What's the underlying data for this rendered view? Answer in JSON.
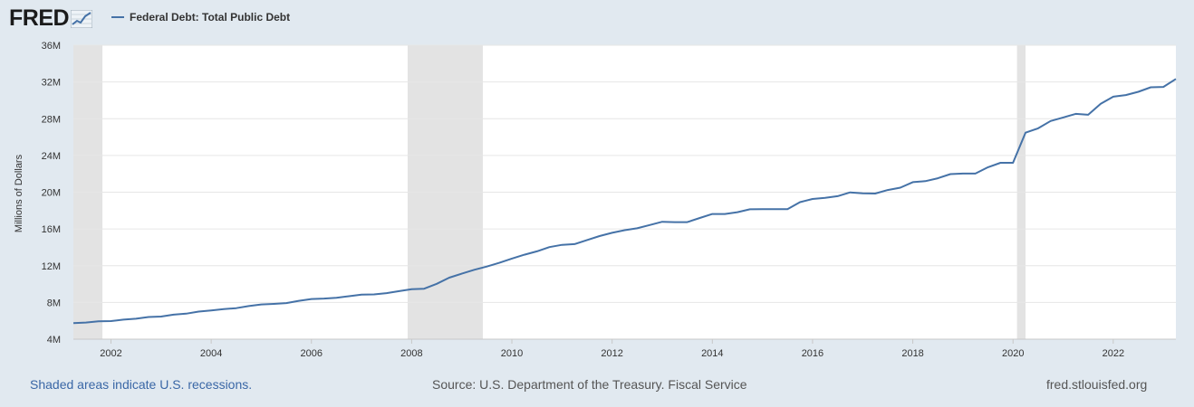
{
  "brand": {
    "logo_text": "FRED",
    "logo_icon": "trend-graph-icon"
  },
  "legend": {
    "series_label": "Federal Debt: Total Public Debt",
    "color": "#4572a7"
  },
  "footer": {
    "recession_note": "Shaded areas indicate U.S. recessions.",
    "source": "Source: U.S. Department of the Treasury. Fiscal Service",
    "site": "fred.stlouisfed.org"
  },
  "chart_data": {
    "type": "line",
    "title": "",
    "xlabel": "",
    "ylabel": "Millions of Dollars",
    "xlim": [
      2001.25,
      2023.25
    ],
    "ylim": [
      4,
      36
    ],
    "y_unit_suffix": "M",
    "yticks": [
      4,
      8,
      12,
      16,
      20,
      24,
      28,
      32,
      36
    ],
    "xticks": [
      2002,
      2004,
      2006,
      2008,
      2010,
      2012,
      2014,
      2016,
      2018,
      2020,
      2022
    ],
    "grid": "horizontal",
    "legend_position": "top-left",
    "recessions": [
      [
        2001.25,
        2001.83
      ],
      [
        2007.92,
        2009.42
      ],
      [
        2020.08,
        2020.25
      ]
    ],
    "series": [
      {
        "name": "Federal Debt: Total Public Debt",
        "color": "#4572a7",
        "x": [
          2001.25,
          2001.5,
          2001.75,
          2002.0,
          2002.25,
          2002.5,
          2002.75,
          2003.0,
          2003.25,
          2003.5,
          2003.75,
          2004.0,
          2004.25,
          2004.5,
          2004.75,
          2005.0,
          2005.25,
          2005.5,
          2005.75,
          2006.0,
          2006.25,
          2006.5,
          2006.75,
          2007.0,
          2007.25,
          2007.5,
          2007.75,
          2008.0,
          2008.25,
          2008.5,
          2008.75,
          2009.0,
          2009.25,
          2009.5,
          2009.75,
          2010.0,
          2010.25,
          2010.5,
          2010.75,
          2011.0,
          2011.25,
          2011.5,
          2011.75,
          2012.0,
          2012.25,
          2012.5,
          2012.75,
          2013.0,
          2013.25,
          2013.5,
          2013.75,
          2014.0,
          2014.25,
          2014.5,
          2014.75,
          2015.0,
          2015.25,
          2015.5,
          2015.75,
          2016.0,
          2016.25,
          2016.5,
          2016.75,
          2017.0,
          2017.25,
          2017.5,
          2017.75,
          2018.0,
          2018.25,
          2018.5,
          2018.75,
          2019.0,
          2019.25,
          2019.5,
          2019.75,
          2020.0,
          2020.25,
          2020.5,
          2020.75,
          2021.0,
          2021.25,
          2021.5,
          2021.75,
          2022.0,
          2022.25,
          2022.5,
          2022.75,
          2023.0,
          2023.25
        ],
        "values": [
          5.74,
          5.81,
          5.94,
          5.97,
          6.13,
          6.23,
          6.41,
          6.46,
          6.67,
          6.78,
          7.0,
          7.13,
          7.27,
          7.38,
          7.6,
          7.78,
          7.84,
          7.93,
          8.17,
          8.37,
          8.42,
          8.51,
          8.68,
          8.85,
          8.87,
          9.01,
          9.23,
          9.44,
          9.49,
          10.03,
          10.7,
          11.13,
          11.55,
          11.91,
          12.31,
          12.77,
          13.2,
          13.56,
          14.02,
          14.27,
          14.35,
          14.79,
          15.22,
          15.58,
          15.86,
          16.07,
          16.43,
          16.78,
          16.74,
          16.74,
          17.19,
          17.63,
          17.63,
          17.82,
          18.14,
          18.15,
          18.15,
          18.15,
          18.92,
          19.26,
          19.38,
          19.57,
          19.98,
          19.88,
          19.85,
          20.24,
          20.49,
          21.09,
          21.2,
          21.52,
          21.97,
          22.03,
          22.03,
          22.72,
          23.2,
          23.2,
          26.48,
          26.95,
          27.75,
          28.13,
          28.53,
          28.43,
          29.62,
          30.4,
          30.57,
          30.93,
          31.42,
          31.46,
          32.33
        ]
      }
    ]
  }
}
